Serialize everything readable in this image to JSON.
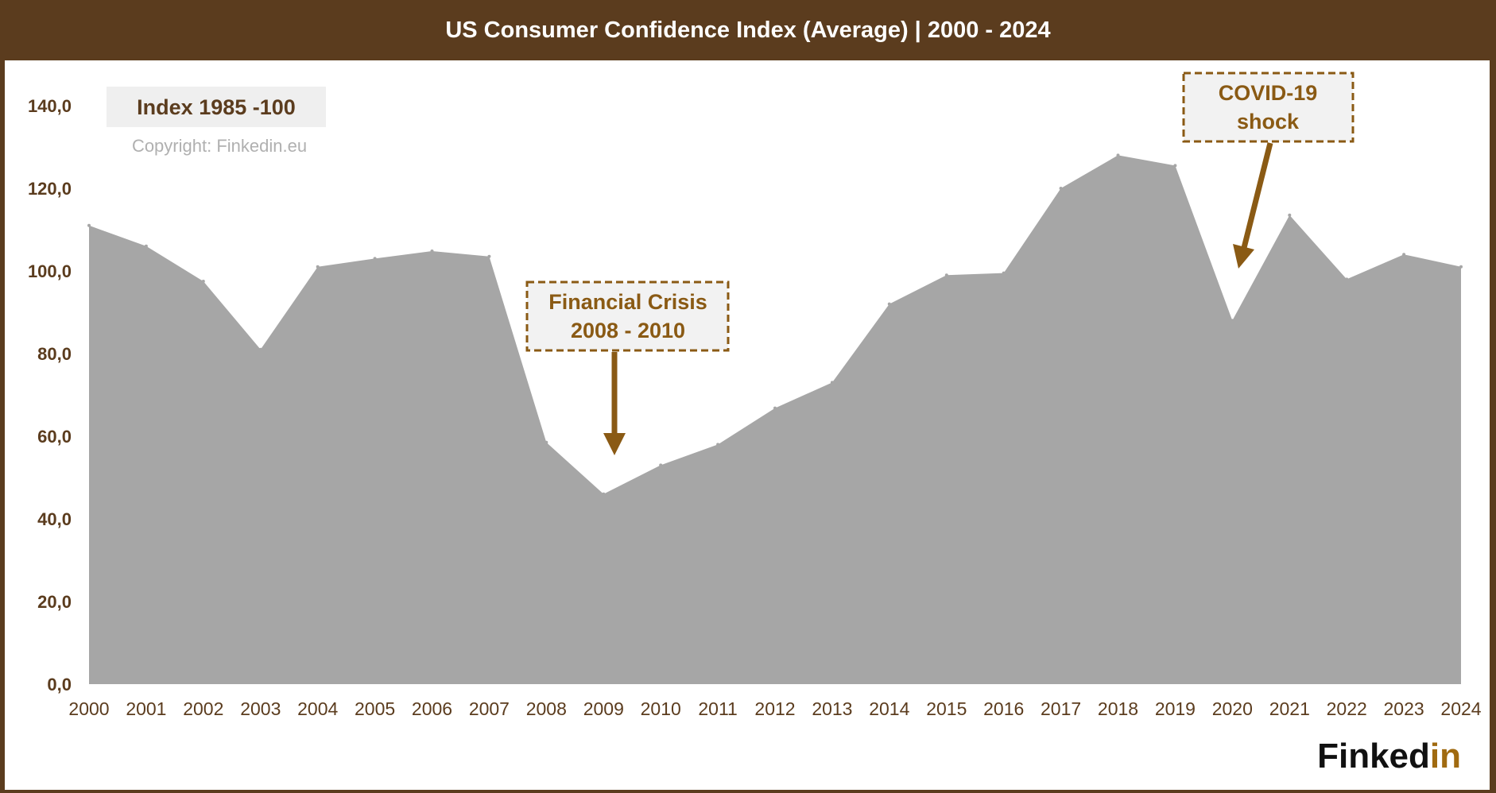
{
  "header": {
    "title": "US Consumer Confidence Index (Average) | 2000 - 2024"
  },
  "legend_box": {
    "label": "Index 1985 -100"
  },
  "copyright": "Copyright: Finkedin.eu",
  "logo": {
    "text_dark": "Finked",
    "text_accent": "in"
  },
  "annotations": {
    "financial_crisis": {
      "line1": "Financial Crisis",
      "line2": "2008 - 2010"
    },
    "covid": {
      "line1": "COVID-19",
      "line2": "shock"
    }
  },
  "colors": {
    "frame": "#5b3c1e",
    "area": "#a6a6a6",
    "axis_text": "#5b3c1e",
    "accent": "#8a5a14",
    "legend_bg": "#efefef"
  },
  "chart_data": {
    "type": "area",
    "title": "US Consumer Confidence Index (Average) | 2000 - 2024",
    "xlabel": "",
    "ylabel": "",
    "x": [
      "2000",
      "2001",
      "2002",
      "2003",
      "2004",
      "2005",
      "2006",
      "2007",
      "2008",
      "2009",
      "2010",
      "2011",
      "2012",
      "2013",
      "2014",
      "2015",
      "2016",
      "2017",
      "2018",
      "2019",
      "2020",
      "2021",
      "2022",
      "2023",
      "2024"
    ],
    "series": [
      {
        "values": [
          111.0,
          106.0,
          97.5,
          81.0,
          101.0,
          103.0,
          104.8,
          103.5,
          58.5,
          46.0,
          53.0,
          58.0,
          66.8,
          73.0,
          92.0,
          99.0,
          99.5,
          120.0,
          128.0,
          125.5,
          88.0,
          113.5,
          98.0,
          104.0,
          101.0
        ]
      }
    ],
    "y_ticks": [
      "0,0",
      "20,0",
      "40,0",
      "60,0",
      "80,0",
      "100,0",
      "120,0",
      "140,0"
    ],
    "ylim": [
      0,
      140
    ],
    "grid": false,
    "legend": "none"
  }
}
